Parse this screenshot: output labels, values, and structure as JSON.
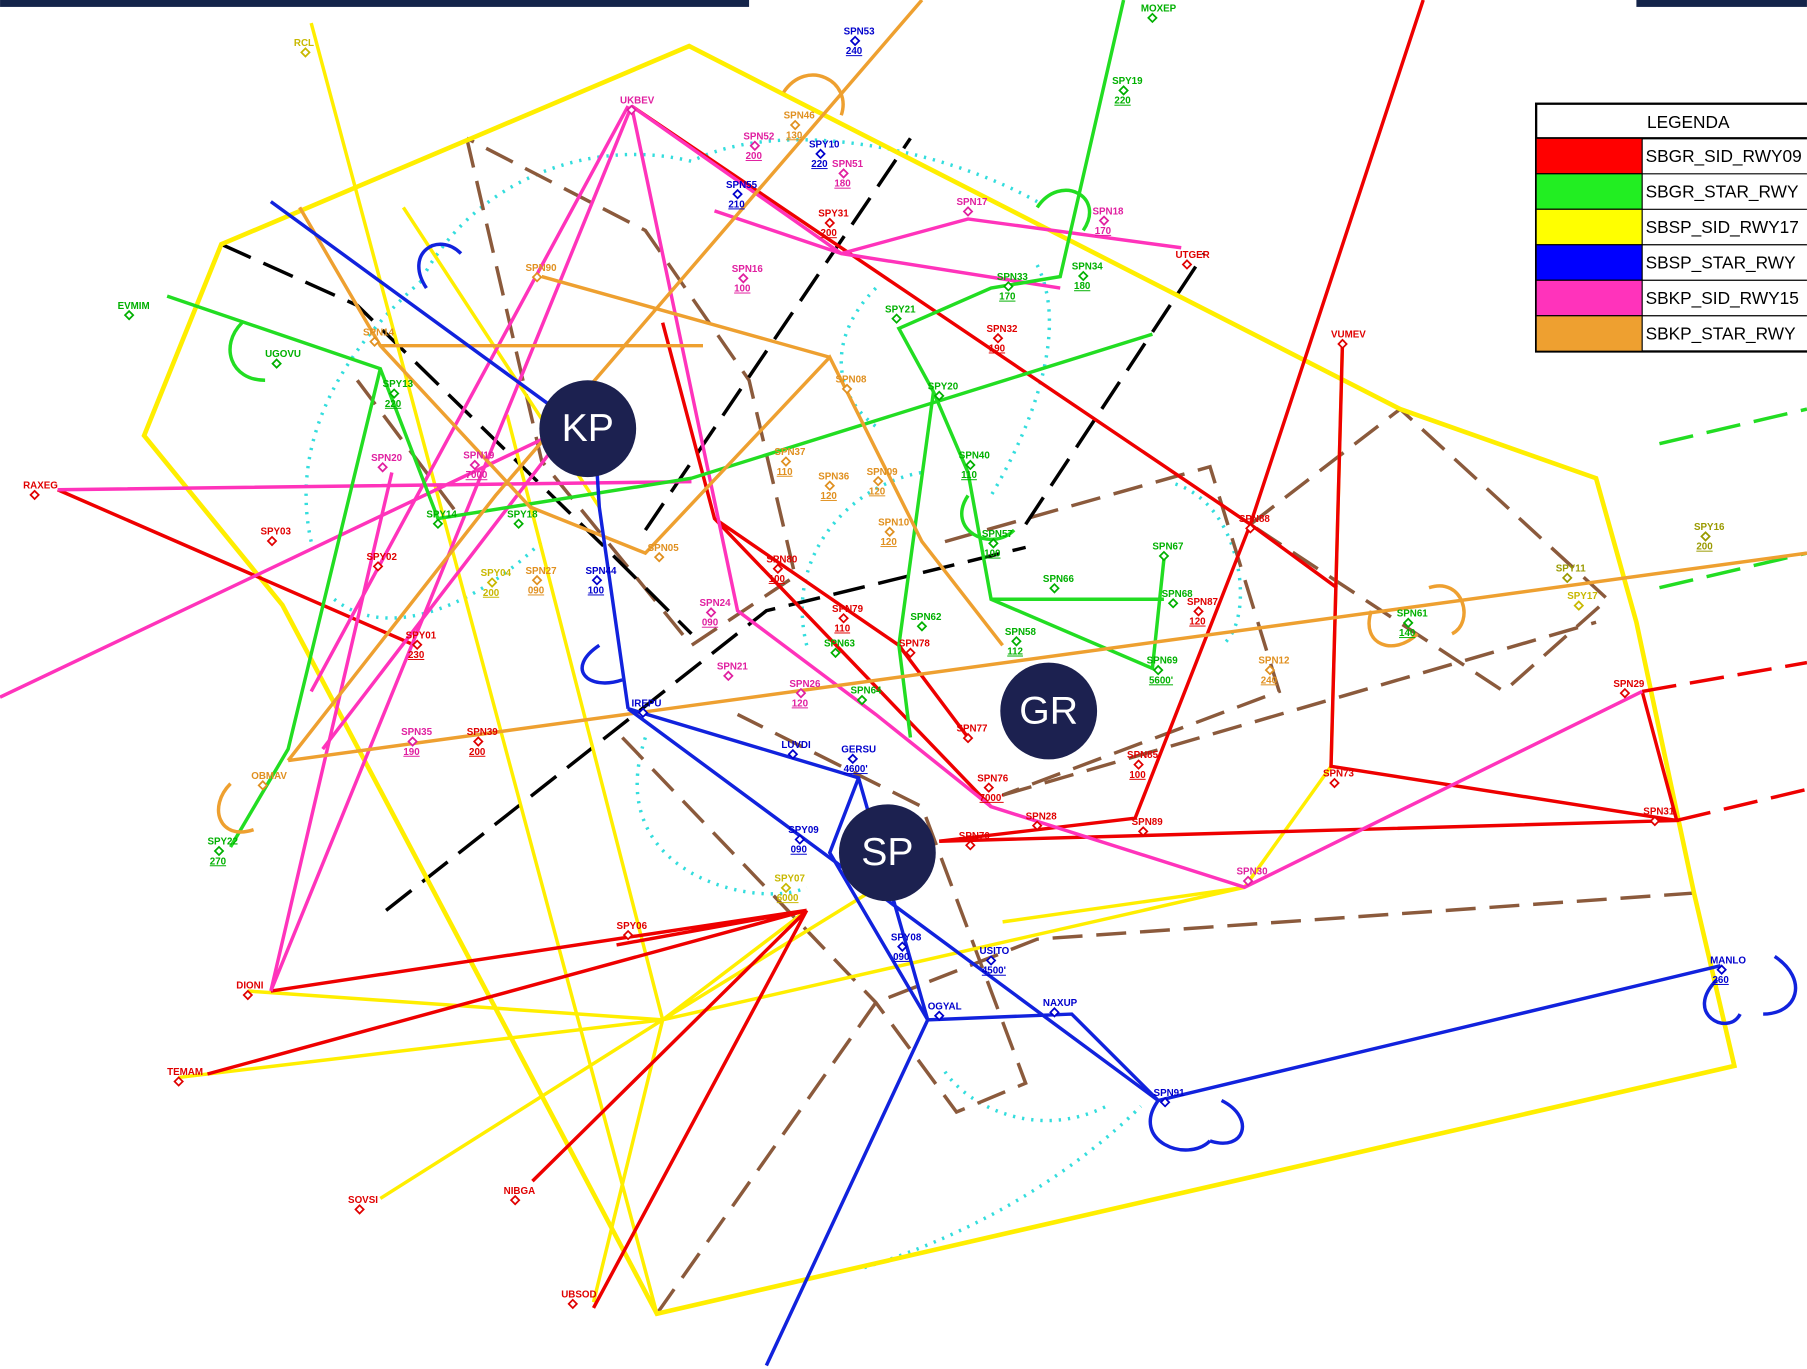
{
  "legend": {
    "title": "LEGENDA",
    "entries": [
      "SBGR_SID_RWY09",
      "SBGR_STAR_RWY",
      "SBSP_SID_RWY17",
      "SBSP_STAR_RWY",
      "SBKP_SID_RWY15",
      "SBKP_STAR_RWY"
    ]
  },
  "airports": [
    "KP",
    "GR",
    "SP"
  ],
  "waypoints": [
    {
      "name": "RCL"
    },
    {
      "name": "UKBEV"
    },
    {
      "name": "MOXEP"
    },
    {
      "name": "SPY19",
      "alt": "220"
    },
    {
      "name": "SPN53",
      "alt": "240"
    },
    {
      "name": "SPY10",
      "alt": "220"
    },
    {
      "name": "SPN55",
      "alt": "210"
    },
    {
      "name": "SPN46",
      "alt": "130"
    },
    {
      "name": "SPN52",
      "alt": "200"
    },
    {
      "name": "SPN51",
      "alt": "180"
    },
    {
      "name": "SPY31",
      "alt": "200"
    },
    {
      "name": "SPN17"
    },
    {
      "name": "SPN18",
      "alt": "170"
    },
    {
      "name": "UTGER"
    },
    {
      "name": "SPN34",
      "alt": "180"
    },
    {
      "name": "SPN33",
      "alt": "170"
    },
    {
      "name": "SPN32",
      "alt": "190"
    },
    {
      "name": "SPY21"
    },
    {
      "name": "VUMEV"
    },
    {
      "name": "SPN88"
    },
    {
      "name": "SPY11"
    },
    {
      "name": "SPY17"
    },
    {
      "name": "SPY16",
      "alt": "200"
    },
    {
      "name": "SPN61",
      "alt": "140"
    },
    {
      "name": "SPN29"
    },
    {
      "name": "SPN31"
    },
    {
      "name": "SPN73"
    },
    {
      "name": "SPN30"
    },
    {
      "name": "SPN89"
    },
    {
      "name": "SPN28"
    },
    {
      "name": "MANLO",
      "alt": "260"
    },
    {
      "name": "SPN91"
    },
    {
      "name": "NAXUP"
    },
    {
      "name": "OGYAL"
    },
    {
      "name": "USITO",
      "alt": "4500'"
    },
    {
      "name": "SPY08",
      "alt": "090"
    },
    {
      "name": "GERSU",
      "alt": "4600'"
    },
    {
      "name": "LUVDI"
    },
    {
      "name": "SPY09",
      "alt": "090"
    },
    {
      "name": "IREPU"
    },
    {
      "name": "SPN44",
      "alt": "100"
    },
    {
      "name": "SPY06"
    },
    {
      "name": "DIONI"
    },
    {
      "name": "TEMAM"
    },
    {
      "name": "SOVSI"
    },
    {
      "name": "NIBGA"
    },
    {
      "name": "UBSOD"
    },
    {
      "name": "RAXEG"
    },
    {
      "name": "SPY03"
    },
    {
      "name": "SPY02"
    },
    {
      "name": "SPY01",
      "alt": "230"
    },
    {
      "name": "SPN39",
      "alt": "200"
    },
    {
      "name": "SPN35",
      "alt": "190"
    },
    {
      "name": "OBMAV"
    },
    {
      "name": "SPY22",
      "alt": "270"
    },
    {
      "name": "EVMIM"
    },
    {
      "name": "UGOVU"
    },
    {
      "name": "SPY13",
      "alt": "220"
    },
    {
      "name": "SPY14"
    },
    {
      "name": "SPY18"
    },
    {
      "name": "SPN20"
    },
    {
      "name": "SPN19",
      "alt": "7000"
    },
    {
      "name": "SPN14"
    },
    {
      "name": "SPN90"
    },
    {
      "name": "SPN16",
      "alt": "100"
    },
    {
      "name": "SPN08"
    },
    {
      "name": "SPN40",
      "alt": "110"
    },
    {
      "name": "SPN37",
      "alt": "110"
    },
    {
      "name": "SPN36",
      "alt": "120"
    },
    {
      "name": "SPN09",
      "alt": "120"
    },
    {
      "name": "SPN10",
      "alt": "120"
    },
    {
      "name": "SPN67"
    },
    {
      "name": "SPN66"
    },
    {
      "name": "SPN68"
    },
    {
      "name": "SPN87",
      "alt": "120"
    },
    {
      "name": "SPN63"
    },
    {
      "name": "SPN62"
    },
    {
      "name": "SPN78"
    },
    {
      "name": "SPN79",
      "alt": "110"
    },
    {
      "name": "SPN80",
      "alt": "100"
    },
    {
      "name": "SPN64"
    },
    {
      "name": "SPN77"
    },
    {
      "name": "SPN76",
      "alt": "7000'"
    },
    {
      "name": "SPN70"
    },
    {
      "name": "SPN21"
    },
    {
      "name": "SPN26",
      "alt": "120"
    },
    {
      "name": "SPN24",
      "alt": "090"
    },
    {
      "name": "SPN27",
      "alt": "090"
    },
    {
      "name": "SPN05"
    },
    {
      "name": "SPY04",
      "alt": "200"
    },
    {
      "name": "SPY07",
      "alt": "6000"
    },
    {
      "name": "SPN85",
      "alt": "100"
    },
    {
      "name": "SPN69",
      "alt": "5600'"
    },
    {
      "name": "SPN12",
      "alt": "240"
    },
    {
      "name": "SPN57",
      "alt": "100"
    },
    {
      "name": "SPN58",
      "alt": "112"
    },
    {
      "name": "SPY20"
    }
  ]
}
